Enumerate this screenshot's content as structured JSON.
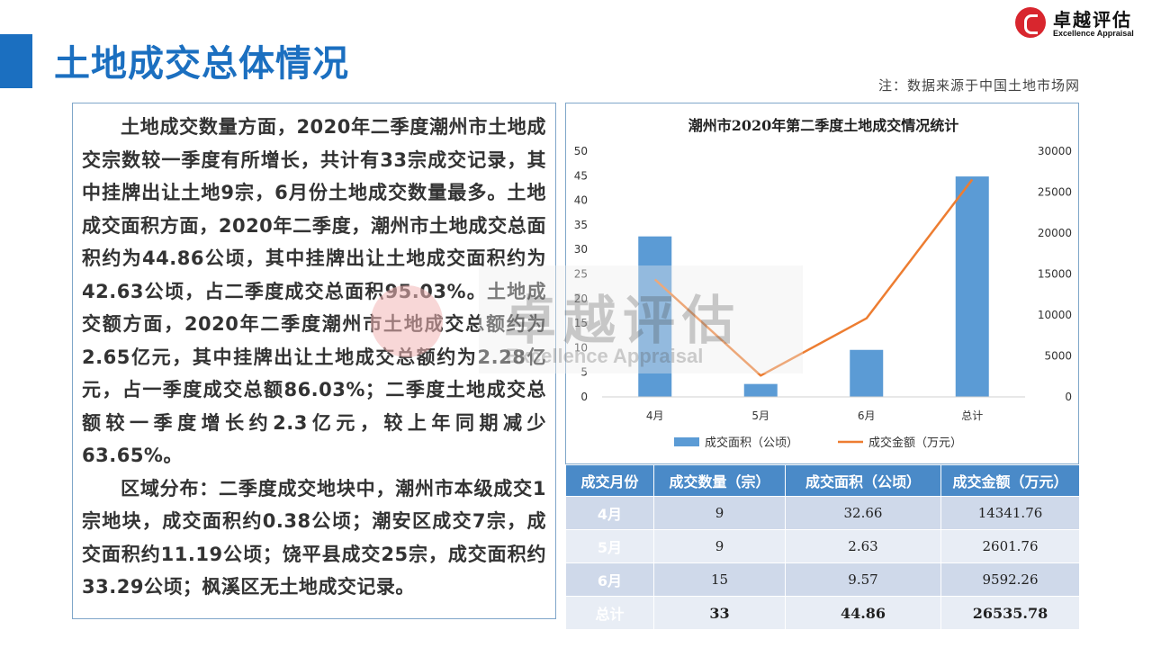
{
  "title": "土地成交总体情况",
  "logo": {
    "cn": "卓越评估",
    "en": "Excellence Appraisal"
  },
  "note": "注：数据来源于中国土地市场网",
  "paragraphs": [
    "土地成交数量方面，2020年二季度潮州市土地成交宗数较一季度有所增长，共计有33宗成交记录，其中挂牌出让土地9宗，6月份土地成交数量最多。土地成交面积方面，2020年二季度，潮州市土地成交总面积约为44.86公顷，其中挂牌出让土地成交面积约为42.63公顷，占二季度成交总面积95.03%。土地成交额方面，2020年二季度潮州市土地成交总额约为2.65亿元，其中挂牌出让土地成交总额约为2.28亿元，占一季度成交总额86.03%；二季度土地成交总额较一季度增长约2.3亿元，较上年同期减少63.65%。",
    "区域分布：二季度成交地块中，潮州市本级成交1宗地块，成交面积约0.38公顷；潮安区成交7宗，成交面积约11.19公顷；饶平县成交25宗，成交面积约33.29公顷；枫溪区无土地成交记录。"
  ],
  "colors": {
    "bar": "#5b9bd5",
    "line": "#ed7d31",
    "brand": "#1b6fc0",
    "header": "#4a8ac8"
  },
  "chart_data": {
    "type": "bar",
    "title": "潮州市2020年第二季度土地成交情况统计",
    "categories": [
      "4月",
      "5月",
      "6月",
      "总计"
    ],
    "series": [
      {
        "name": "成交面积（公顷）",
        "type": "bar",
        "axis": "left",
        "values": [
          32.66,
          2.63,
          9.57,
          44.86
        ]
      },
      {
        "name": "成交金额（万元）",
        "type": "line",
        "axis": "right",
        "values": [
          14341.76,
          2601.76,
          9592.26,
          26535.78
        ]
      }
    ],
    "y_left": {
      "ticks": [
        "0",
        "5",
        "10",
        "15",
        "20",
        "25",
        "30",
        "35",
        "40",
        "45",
        "50"
      ],
      "range": [
        0,
        50
      ]
    },
    "y_right": {
      "ticks": [
        "0",
        "5000",
        "10000",
        "15000",
        "20000",
        "25000",
        "30000"
      ],
      "range": [
        0,
        30000
      ]
    },
    "legend_position": "bottom",
    "grid": false
  },
  "table": {
    "headers": [
      "成交月份",
      "成交数量（宗）",
      "成交面积（公顷）",
      "成交金额（万元）"
    ],
    "rows": [
      [
        "4月",
        "9",
        "32.66",
        "14341.76"
      ],
      [
        "5月",
        "9",
        "2.63",
        "2601.76"
      ],
      [
        "6月",
        "15",
        "9.57",
        "9592.26"
      ],
      [
        "总计",
        "33",
        "44.86",
        "26535.78"
      ]
    ]
  },
  "watermark": {
    "cn": "卓越评估",
    "en": "Excellence Appraisal"
  }
}
